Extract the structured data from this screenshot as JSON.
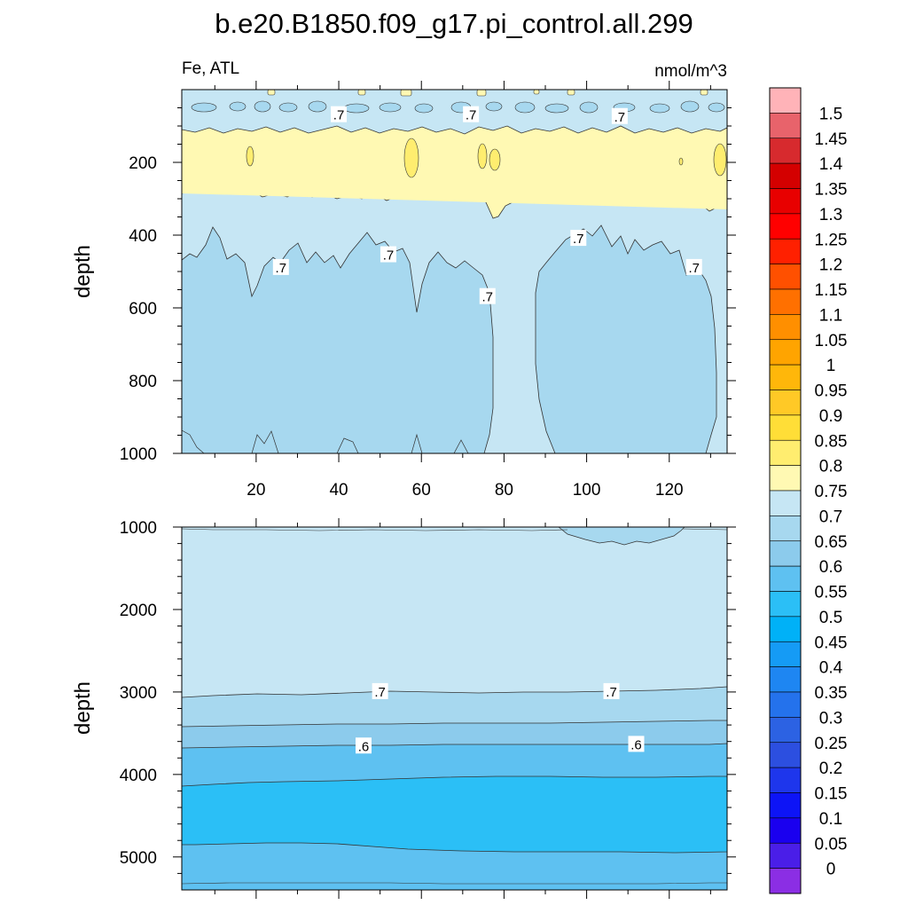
{
  "title": "b.e20.B1850.f09_g17.pi_control.all.299",
  "subtitle_left": "Fe, ATL",
  "subtitle_right": "nmol/m^3",
  "colors": {
    "c065_070": "#a7d8ef",
    "c070_075": "#c6e6f4",
    "c075_080": "#fff9b3",
    "c060_065": "#8ccbec",
    "c055_060": "#5ec1f1",
    "c050_055": "#2bbff6"
  },
  "chart_data": [
    {
      "type": "contour",
      "panel": "upper",
      "xlabel": "",
      "ylabel": "depth",
      "x_ticks": [
        "20",
        "40",
        "60",
        "80",
        "100",
        "120"
      ],
      "x_tick_values": [
        20,
        40,
        60,
        80,
        100,
        120
      ],
      "xlim": [
        2,
        134
      ],
      "y_ticks": [
        "200",
        "400",
        "600",
        "800",
        "1000"
      ],
      "y_tick_values": [
        200,
        400,
        600,
        800,
        1000
      ],
      "ylim": [
        0,
        1000
      ],
      "y_reversed": true,
      "contour_levels": [
        0.7,
        0.75
      ],
      "contour_labels": [
        {
          "text": ".7",
          "x": 40,
          "depth": 70
        },
        {
          "text": ".7",
          "x": 72,
          "depth": 70
        },
        {
          "text": ".7",
          "x": 108,
          "depth": 75
        },
        {
          "text": ".7",
          "x": 26,
          "depth": 490
        },
        {
          "text": ".7",
          "x": 52,
          "depth": 455
        },
        {
          "text": ".7",
          "x": 76,
          "depth": 570
        },
        {
          "text": ".7",
          "x": 98,
          "depth": 410
        },
        {
          "text": ".7",
          "x": 126,
          "depth": 490
        }
      ],
      "regions": [
        {
          "range": "0.7-0.75",
          "depth": [
            0,
            110
          ]
        },
        {
          "range": "0.75-0.8",
          "depth": [
            110,
            290
          ]
        },
        {
          "range": "0.7-0.75",
          "depth": [
            290,
            1000
          ]
        },
        {
          "range": "0.65-0.7",
          "depth": [
            420,
            1000
          ],
          "x": [
            2,
            77
          ]
        },
        {
          "range": "0.65-0.7",
          "depth": [
            420,
            1000
          ],
          "x": [
            87,
            132
          ]
        }
      ]
    },
    {
      "type": "contour",
      "panel": "lower",
      "xlabel": "",
      "ylabel": "depth",
      "y_ticks": [
        "1000",
        "2000",
        "3000",
        "4000",
        "5000"
      ],
      "y_tick_values": [
        1000,
        2000,
        3000,
        4000,
        5000
      ],
      "ylim": [
        1000,
        5400
      ],
      "y_reversed": true,
      "xlim": [
        2,
        134
      ],
      "contour_levels": [
        0.5,
        0.55,
        0.6,
        0.65,
        0.7
      ],
      "contour_labels": [
        {
          "text": ".7",
          "x": 50,
          "depth": 3000
        },
        {
          "text": ".7",
          "x": 106,
          "depth": 3000
        },
        {
          "text": ".6",
          "x": 46,
          "depth": 3660
        },
        {
          "text": ".6",
          "x": 112,
          "depth": 3640
        }
      ],
      "regions": [
        {
          "range": "0.7-0.75",
          "depth": [
            1000,
            3020
          ]
        },
        {
          "range": "0.65-0.7",
          "depth": [
            3020,
            3400
          ]
        },
        {
          "range": "0.6-0.65",
          "depth": [
            3400,
            3630
          ]
        },
        {
          "range": "0.55-0.6",
          "depth": [
            3630,
            4070
          ]
        },
        {
          "range": "0.5-0.55",
          "depth": [
            4070,
            4850
          ]
        },
        {
          "range": "0.55-0.6",
          "depth": [
            4850,
            5300
          ]
        }
      ]
    },
    {
      "type": "colorbar",
      "labels": [
        "1.5",
        "1.45",
        "1.4",
        "1.35",
        "1.3",
        "1.25",
        "1.2",
        "1.15",
        "1.1",
        "1.05",
        "1",
        "0.95",
        "0.9",
        "0.85",
        "0.8",
        "0.75",
        "0.7",
        "0.65",
        "0.6",
        "0.55",
        "0.5",
        "0.45",
        "0.4",
        "0.35",
        "0.3",
        "0.25",
        "0.2",
        "0.15",
        "0.1",
        "0.05",
        "0"
      ],
      "colors_top_to_bottom": [
        "#ffb3b8",
        "#e8636b",
        "#d72a2e",
        "#d40000",
        "#e80000",
        "#ff0000",
        "#ff2000",
        "#ff5000",
        "#ff7000",
        "#ff8f00",
        "#ffa400",
        "#ffb70a",
        "#ffc926",
        "#ffde37",
        "#ffed6f",
        "#fff9b3",
        "#c6e6f4",
        "#a7d8ef",
        "#8ccbec",
        "#5ec1f1",
        "#2bbff6",
        "#00b1f7",
        "#159bf5",
        "#1e86f2",
        "#2472ec",
        "#2c62e3",
        "#2c4fe0",
        "#1e36ec",
        "#0d14f6",
        "#1a00ef",
        "#4a1ee8",
        "#8b2ee4"
      ]
    }
  ]
}
